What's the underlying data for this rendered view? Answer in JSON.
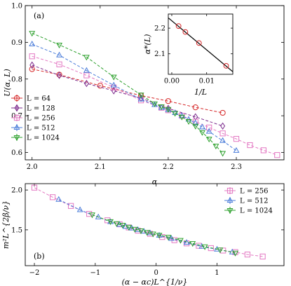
{
  "chart_data": [
    {
      "type": "line",
      "panel_label": "(a)",
      "xlabel": "α",
      "ylabel": "U(α, L)",
      "xlim": [
        1.99,
        2.37
      ],
      "ylim": [
        0.58,
        1.0
      ],
      "x_ticks": [
        2.0,
        2.1,
        2.2,
        2.3
      ],
      "x_tick_labels": [
        "2.0",
        "2.1",
        "2.2",
        "2.3"
      ],
      "y_ticks": [
        0.6,
        0.7,
        0.8,
        0.9,
        1.0
      ],
      "y_tick_labels": [
        "0.6",
        "0.7",
        "0.8",
        "0.9",
        "1.0"
      ],
      "legend": "lower-left",
      "series": [
        {
          "name": "L = 64",
          "color": "#d62728",
          "marker": "circle",
          "x": [
            2.0,
            2.04,
            2.1,
            2.16,
            2.2,
            2.24,
            2.28
          ],
          "y": [
            0.827,
            0.812,
            0.782,
            0.755,
            0.74,
            0.723,
            0.708
          ]
        },
        {
          "name": "L = 128",
          "color": "#7b2a8c",
          "marker": "diamond",
          "x": [
            2.0,
            2.04,
            2.08,
            2.12,
            2.16,
            2.2,
            2.24,
            2.28
          ],
          "y": [
            0.838,
            0.81,
            0.788,
            0.768,
            0.748,
            0.72,
            0.697,
            0.672
          ]
        },
        {
          "name": "L = 256",
          "color": "#e377c2",
          "marker": "square",
          "x": [
            2.0,
            2.04,
            2.08,
            2.12,
            2.16,
            2.19,
            2.2,
            2.22,
            2.24,
            2.26,
            2.28,
            2.3,
            2.32,
            2.34,
            2.36
          ],
          "y": [
            0.862,
            0.84,
            0.81,
            0.777,
            0.742,
            0.722,
            0.715,
            0.7,
            0.684,
            0.668,
            0.652,
            0.637,
            0.62,
            0.606,
            0.593
          ]
        },
        {
          "name": "L = 512",
          "color": "#4a7cd9",
          "marker": "triangle-up",
          "x": [
            2.0,
            2.04,
            2.08,
            2.12,
            2.16,
            2.18,
            2.19,
            2.2,
            2.21,
            2.22,
            2.23,
            2.24,
            2.25,
            2.26,
            2.28,
            2.3
          ],
          "y": [
            0.895,
            0.865,
            0.823,
            0.783,
            0.745,
            0.73,
            0.722,
            0.716,
            0.708,
            0.7,
            0.69,
            0.68,
            0.669,
            0.657,
            0.632,
            0.605
          ]
        },
        {
          "name": "L = 1024",
          "color": "#2ca02c",
          "marker": "triangle-down",
          "x": [
            2.0,
            2.04,
            2.08,
            2.12,
            2.16,
            2.18,
            2.19,
            2.2,
            2.21,
            2.22,
            2.23,
            2.24,
            2.25,
            2.26,
            2.27,
            2.28
          ],
          "y": [
            0.925,
            0.893,
            0.86,
            0.806,
            0.757,
            0.733,
            0.725,
            0.718,
            0.707,
            0.697,
            0.685,
            0.672,
            0.655,
            0.637,
            0.618,
            0.598
          ]
        }
      ]
    },
    {
      "type": "scatter",
      "panel": "inset",
      "xlabel": "1/L",
      "ylabel": "α*(L)",
      "xlim": [
        -0.001,
        0.0175
      ],
      "ylim": [
        2.02,
        2.255
      ],
      "x_ticks": [
        0.0,
        0.01
      ],
      "x_tick_labels": [
        "0.00",
        "0.01"
      ],
      "y_ticks": [
        2.1,
        2.2
      ],
      "y_tick_labels": [
        "2.1",
        "2.2"
      ],
      "series": [
        {
          "color": "#d62728",
          "marker": "circle",
          "x": [
            0.00195,
            0.0039,
            0.0078,
            0.0156
          ],
          "y": [
            2.208,
            2.185,
            2.142,
            2.053
          ]
        }
      ],
      "fit_line": {
        "x": [
          -0.001,
          0.0175
        ],
        "y": [
          2.24,
          2.03
        ]
      }
    },
    {
      "type": "line",
      "panel_label": "(b)",
      "xlabel": "(α − αc)L^{1/ν}",
      "ylabel": "m²L^{2β/ν}",
      "xlim": [
        -2.15,
        2.1
      ],
      "ylim": [
        1.05,
        2.08
      ],
      "x_ticks": [
        -2,
        -1,
        0,
        1
      ],
      "x_tick_labels": [
        "−2",
        "−1",
        "0",
        "1"
      ],
      "y_ticks": [
        1.5,
        2.0
      ],
      "y_tick_labels": [
        "1.5",
        "2.0"
      ],
      "legend": "top-right",
      "series": [
        {
          "name": "L = 256",
          "color": "#e377c2",
          "marker": "square",
          "x": [
            -2.0,
            -1.7,
            -1.4,
            -1.1,
            -0.8,
            -0.6,
            -0.45,
            -0.3,
            -0.1,
            0.1,
            0.3,
            0.5,
            0.7,
            0.9,
            1.1,
            1.3,
            1.5,
            1.75
          ],
          "y": [
            2.03,
            1.91,
            1.8,
            1.7,
            1.62,
            1.57,
            1.53,
            1.49,
            1.45,
            1.41,
            1.37,
            1.33,
            1.3,
            1.27,
            1.24,
            1.22,
            1.19,
            1.165
          ]
        },
        {
          "name": "L = 512",
          "color": "#4a7cd9",
          "marker": "triangle-up",
          "x": [
            -1.6,
            -1.25,
            -0.95,
            -0.75,
            -0.6,
            -0.5,
            -0.4,
            -0.3,
            -0.2,
            -0.1,
            0.05,
            0.25,
            0.5,
            0.75,
            1.0,
            1.25
          ],
          "y": [
            1.88,
            1.75,
            1.66,
            1.6,
            1.565,
            1.54,
            1.52,
            1.5,
            1.48,
            1.46,
            1.43,
            1.39,
            1.34,
            1.29,
            1.255,
            1.22
          ]
        },
        {
          "name": "L = 1024",
          "color": "#2ca02c",
          "marker": "triangle-down",
          "x": [
            -1.05,
            -0.75,
            -0.65,
            -0.55,
            -0.45,
            -0.35,
            -0.25,
            -0.15,
            -0.05,
            0.05,
            0.2,
            0.4,
            0.6,
            0.8,
            1.05,
            1.3
          ],
          "y": [
            1.69,
            1.605,
            1.58,
            1.56,
            1.535,
            1.51,
            1.49,
            1.47,
            1.45,
            1.435,
            1.41,
            1.37,
            1.33,
            1.29,
            1.25,
            1.21
          ]
        }
      ]
    }
  ]
}
